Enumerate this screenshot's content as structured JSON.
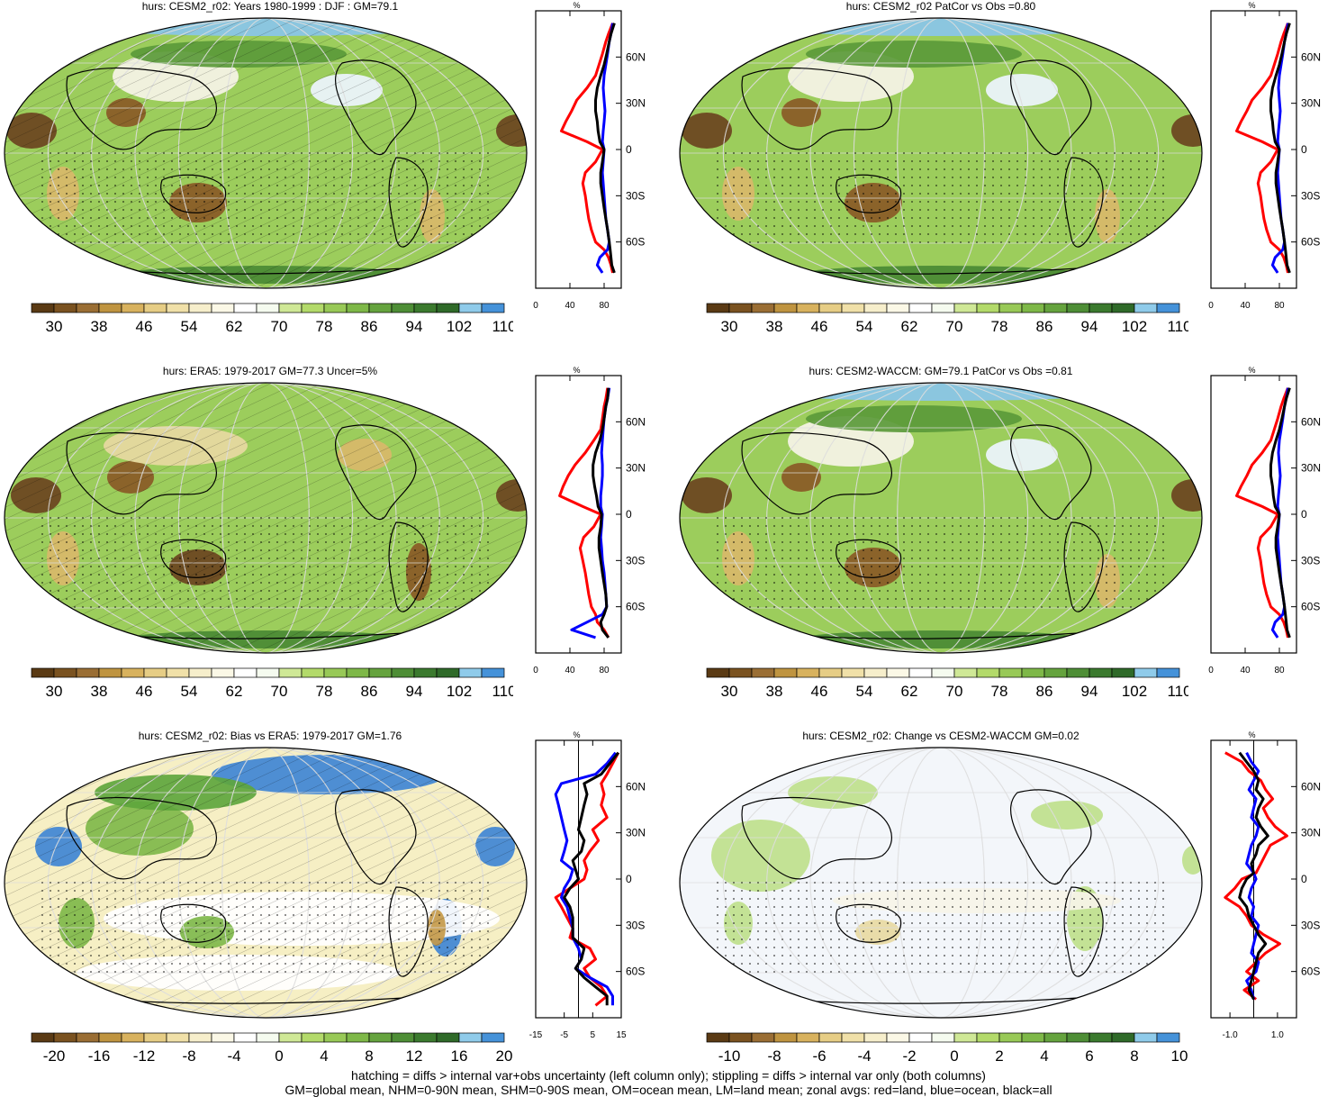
{
  "panels": [
    {
      "title": "hurs: CESM2_r02: Years 1980-1999 : DJF : GM=79.1",
      "kind": "clim",
      "hatch": true
    },
    {
      "title": "hurs: CESM2_r02 PatCor vs Obs =0.80",
      "kind": "clim",
      "hatch": false
    },
    {
      "title": "hurs: ERA5: 1979-2017 GM=77.3 Uncer=5%",
      "kind": "obs",
      "hatch": true
    },
    {
      "title": "hurs: CESM2-WACCM: GM=79.1 PatCor vs Obs =0.81",
      "kind": "clim",
      "hatch": false
    },
    {
      "title": "hurs: CESM2_r02: Bias vs ERA5: 1979-2017 GM=1.76",
      "kind": "bias",
      "hatch": true
    },
    {
      "title": "hurs: CESM2_r02: Change vs CESM2-WACCM GM=0.02",
      "kind": "change",
      "hatch": false
    }
  ],
  "chart_data": {
    "type": "heatmap",
    "variable": "hurs",
    "lat_ticks": [
      "60N",
      "30N",
      "0",
      "30S",
      "60S"
    ],
    "profile_unit": "%",
    "colorbars": {
      "clim": {
        "labels": [
          "30",
          "38",
          "46",
          "54",
          "62",
          "70",
          "78",
          "86",
          "94",
          "102",
          "110"
        ],
        "colors": [
          "#5a3a14",
          "#7a5220",
          "#9a6e34",
          "#bf9440",
          "#d8b25e",
          "#e6cd85",
          "#f0e0a8",
          "#f6eecb",
          "#fbf8e6",
          "#ffffff",
          "#f5fbef",
          "#cfe896",
          "#b3da6a",
          "#98c957",
          "#7eb848",
          "#65a33e",
          "#4e8e36",
          "#3b7a2e",
          "#2f6a29",
          "#8fcbea",
          "#4592d9"
        ]
      },
      "bias": {
        "labels": [
          "-20",
          "-16",
          "-12",
          "-8",
          "-4",
          "0",
          "4",
          "8",
          "12",
          "16",
          "20"
        ],
        "colors": [
          "#5a3a14",
          "#7a5220",
          "#9a6e34",
          "#bf9440",
          "#d8b25e",
          "#e6cd85",
          "#f0e0a8",
          "#f6eecb",
          "#fbf8e6",
          "#ffffff",
          "#f5fbef",
          "#cfe896",
          "#b3da6a",
          "#98c957",
          "#7eb848",
          "#65a33e",
          "#4e8e36",
          "#3b7a2e",
          "#2f6a29",
          "#8fcbea",
          "#4592d9"
        ]
      },
      "change": {
        "labels": [
          "-10",
          "-8",
          "-6",
          "-4",
          "-2",
          "0",
          "2",
          "4",
          "6",
          "8",
          "10"
        ],
        "colors": [
          "#5a3a14",
          "#7a5220",
          "#9a6e34",
          "#bf9440",
          "#d8b25e",
          "#e6cd85",
          "#f0e0a8",
          "#f6eecb",
          "#fbf8e6",
          "#ffffff",
          "#f5fbef",
          "#cfe896",
          "#b3da6a",
          "#98c957",
          "#7eb848",
          "#65a33e",
          "#4e8e36",
          "#3b7a2e",
          "#2f6a29",
          "#8fcbea",
          "#4592d9"
        ]
      }
    },
    "profile_axes": {
      "clim": {
        "xlim": [
          0,
          100
        ],
        "xticks": [
          "0",
          "40",
          "80"
        ],
        "tickvals": [
          0,
          40,
          80
        ]
      },
      "bias": {
        "xlim": [
          -15,
          15
        ],
        "xticks": [
          "-15",
          "-5",
          "5",
          "15"
        ],
        "tickvals": [
          -15,
          -5,
          5,
          15
        ]
      },
      "change": {
        "xlim": [
          -1.8,
          1.8
        ],
        "xticks": [
          "-1.0",
          "1.0"
        ],
        "tickvals": [
          -1,
          1
        ]
      }
    },
    "series": [
      {
        "color": "#ff0000",
        "legend": "red=land"
      },
      {
        "color": "#0000ff",
        "legend": "blue=ocean"
      },
      {
        "color": "#000000",
        "legend": "black=all"
      }
    ],
    "profiles": {
      "clim": {
        "lat": [
          82,
          75,
          70,
          62,
          55,
          48,
          40,
          32,
          25,
          18,
          12,
          5,
          0,
          -8,
          -15,
          -22,
          -30,
          -38,
          -45,
          -52,
          -60,
          -65,
          -70,
          -75,
          -80
        ],
        "land": [
          90,
          85,
          82,
          78,
          74,
          70,
          60,
          48,
          42,
          35,
          30,
          60,
          78,
          70,
          58,
          55,
          58,
          60,
          62,
          65,
          70,
          80,
          85,
          88,
          90
        ],
        "ocean": [
          90,
          88,
          86,
          84,
          82,
          80,
          79,
          80,
          81,
          80,
          79,
          78,
          80,
          79,
          78,
          79,
          80,
          81,
          82,
          84,
          86,
          84,
          75,
          72,
          78
        ],
        "all": [
          92,
          88,
          86,
          83,
          80,
          76,
          72,
          70,
          70,
          72,
          73,
          75,
          80,
          78,
          76,
          76,
          78,
          80,
          82,
          84,
          86,
          87,
          88,
          89,
          92
        ]
      },
      "obs": {
        "lat": [
          82,
          75,
          70,
          62,
          55,
          48,
          40,
          32,
          25,
          18,
          12,
          5,
          0,
          -8,
          -15,
          -22,
          -30,
          -38,
          -45,
          -52,
          -60,
          -65,
          -70,
          -75,
          -80
        ],
        "land": [
          84,
          82,
          80,
          78,
          76,
          68,
          58,
          46,
          38,
          32,
          28,
          55,
          76,
          68,
          56,
          52,
          55,
          58,
          60,
          62,
          65,
          70,
          72,
          80,
          85
        ],
        "ocean": [
          86,
          84,
          82,
          80,
          79,
          78,
          77,
          78,
          78,
          77,
          76,
          76,
          78,
          77,
          76,
          77,
          78,
          80,
          81,
          82,
          83,
          78,
          60,
          42,
          70
        ],
        "all": [
          85,
          84,
          82,
          80,
          78,
          75,
          70,
          67,
          67,
          69,
          71,
          73,
          77,
          76,
          74,
          74,
          76,
          78,
          80,
          82,
          83,
          80,
          76,
          78,
          85
        ]
      },
      "bias": {
        "lat": [
          82,
          75,
          68,
          62,
          55,
          48,
          40,
          32,
          25,
          18,
          12,
          6,
          0,
          -6,
          -12,
          -18,
          -25,
          -32,
          -38,
          -45,
          -52,
          -58,
          -64,
          -70,
          -76,
          -82
        ],
        "land": [
          14,
          12,
          10,
          8,
          9,
          8,
          10,
          5,
          7,
          4,
          2,
          3,
          2,
          -3,
          -8,
          -6,
          -4,
          -2,
          -3,
          4,
          6,
          2,
          4,
          8,
          10,
          6
        ],
        "ocean": [
          13,
          10,
          6,
          -6,
          -8,
          -7,
          -6,
          -5,
          -4,
          -5,
          -6,
          -2,
          -3,
          -5,
          -6,
          -4,
          -3,
          -2,
          -2,
          0,
          1,
          -1,
          4,
          10,
          12,
          12
        ],
        "all": [
          14,
          11,
          8,
          2,
          3,
          2,
          1,
          0,
          2,
          1,
          -2,
          -1,
          0,
          -3,
          -5,
          -3,
          -2,
          -2,
          -2,
          2,
          1,
          -1,
          2,
          6,
          10,
          10
        ]
      },
      "change": {
        "lat": [
          82,
          76,
          70,
          64,
          58,
          52,
          46,
          40,
          34,
          28,
          22,
          16,
          10,
          4,
          0,
          -6,
          -12,
          -18,
          -24,
          -30,
          -36,
          -42,
          -48,
          -54,
          -60,
          -66,
          -72,
          -78
        ],
        "land": [
          -1.2,
          -0.5,
          -0.2,
          0.3,
          0.5,
          0.8,
          0.4,
          0.6,
          0.9,
          1.4,
          0.7,
          0.5,
          0.3,
          0.1,
          -0.5,
          -0.8,
          -1.2,
          -0.6,
          -0.3,
          -0.1,
          0.4,
          1.1,
          0.5,
          0.1,
          -0.3,
          0.2,
          -0.4,
          0.1
        ],
        "ocean": [
          -0.3,
          -0.1,
          0.2,
          0.0,
          -0.2,
          0.1,
          0.0,
          -0.1,
          0.2,
          0.1,
          -0.1,
          -0.2,
          -0.3,
          0.0,
          0.1,
          -0.1,
          -0.2,
          0.0,
          -0.1,
          0.2,
          0.1,
          0.0,
          -0.1,
          0.2,
          0.1,
          -0.3,
          -0.1,
          0.0
        ],
        "all": [
          -0.6,
          -0.3,
          0.0,
          0.2,
          0.1,
          0.4,
          0.2,
          0.1,
          0.3,
          0.6,
          0.2,
          0.1,
          -0.1,
          0.0,
          -0.3,
          -0.5,
          -0.6,
          -0.3,
          -0.2,
          0.0,
          0.2,
          0.5,
          0.2,
          0.1,
          0.0,
          -0.1,
          -0.2,
          0.0
        ]
      }
    }
  },
  "footer": {
    "line1": "hatching = diffs > internal var+obs uncertainty (left column only); stippling = diffs > internal var only (both columns)",
    "line2": "GM=global mean, NHM=0-90N mean, SHM=0-90S mean, OM=ocean mean, LM=land mean; zonal avgs: red=land, blue=ocean, black=all"
  }
}
